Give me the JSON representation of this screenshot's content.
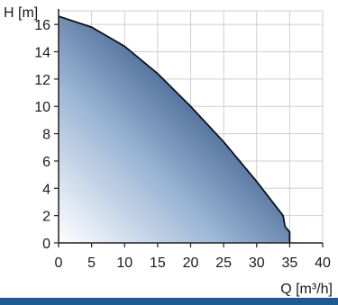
{
  "chart_data": {
    "type": "area",
    "ylabel": "H [m]",
    "xlabel": "Q [m³/h]",
    "xlim": [
      0,
      40
    ],
    "ylim": [
      0,
      17
    ],
    "x_ticks": [
      0,
      5,
      10,
      15,
      20,
      25,
      30,
      35,
      40
    ],
    "y_ticks": [
      0,
      2,
      4,
      6,
      8,
      10,
      12,
      14,
      16
    ],
    "grid": true,
    "series": [
      {
        "x": [
          0,
          5,
          10,
          15,
          20,
          25,
          30,
          34,
          34.3,
          35
        ],
        "y": [
          16.6,
          15.8,
          14.4,
          12.4,
          10.0,
          7.4,
          4.5,
          2.0,
          1.2,
          0.8
        ]
      }
    ],
    "fill_gradient": [
      "#ffffff",
      "#9db7d6",
      "#0a2d63"
    ],
    "line_color": "#111111",
    "grid_color": "#cfcfcf"
  },
  "footer": {
    "bar_color": "#1f5a96"
  }
}
